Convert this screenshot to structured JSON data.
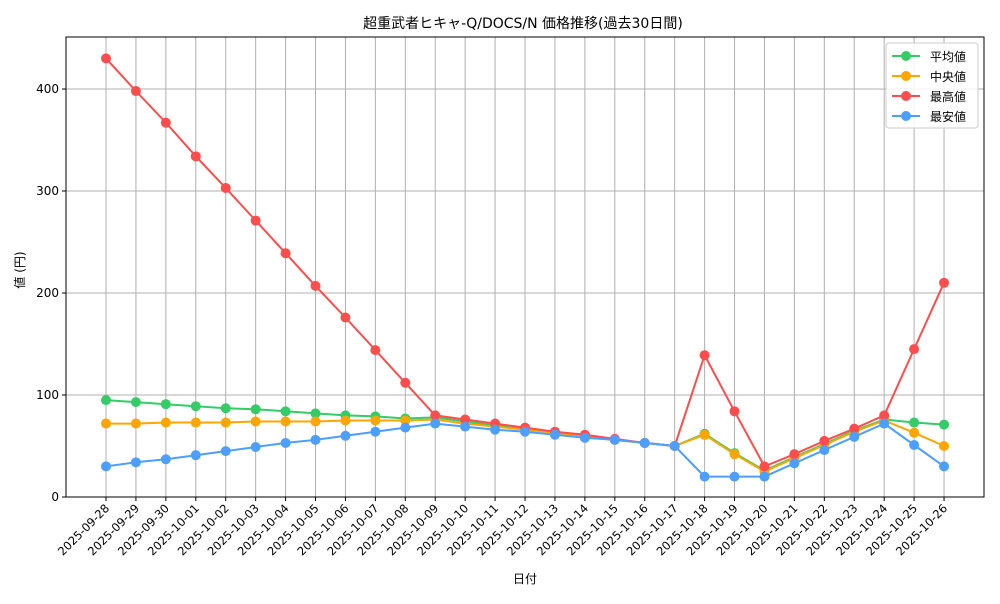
{
  "chart_data": {
    "type": "line",
    "title": "超重武者ヒキャ-Q/DOCS/N 価格推移(過去30日間)",
    "xlabel": "日付",
    "ylabel": "値 (円)",
    "ylim": [
      0,
      450
    ],
    "yticks": [
      0,
      100,
      200,
      300,
      400
    ],
    "grid": true,
    "legend_position": "upper right",
    "categories": [
      "2025-09-28",
      "2025-09-29",
      "2025-09-30",
      "2025-10-01",
      "2025-10-02",
      "2025-10-03",
      "2025-10-04",
      "2025-10-05",
      "2025-10-06",
      "2025-10-07",
      "2025-10-08",
      "2025-10-09",
      "2025-10-10",
      "2025-10-11",
      "2025-10-12",
      "2025-10-13",
      "2025-10-14",
      "2025-10-15",
      "2025-10-16",
      "2025-10-17",
      "2025-10-18",
      "2025-10-19",
      "2025-10-20",
      "2025-10-21",
      "2025-10-22",
      "2025-10-23",
      "2025-10-24",
      "2025-10-25",
      "2025-10-26"
    ],
    "series": [
      {
        "name": "平均値",
        "color": "#33cc66",
        "values": [
          95,
          93,
          91,
          89,
          87,
          86,
          84,
          82,
          80,
          79,
          77,
          78,
          74,
          70,
          67,
          63,
          60,
          56,
          53,
          50,
          62,
          43,
          26,
          39,
          52,
          65,
          76,
          73,
          71
        ]
      },
      {
        "name": "中央値",
        "color": "#ffa500",
        "values": [
          72,
          72,
          73,
          73,
          73,
          74,
          74,
          74,
          75,
          75,
          75,
          76,
          72,
          69,
          66,
          63,
          60,
          56,
          53,
          50,
          61,
          42,
          25,
          38,
          51,
          64,
          75,
          63,
          50
        ]
      },
      {
        "name": "最高値",
        "color": "#ff4d4d",
        "values": [
          430,
          398,
          367,
          334,
          303,
          271,
          239,
          207,
          176,
          144,
          112,
          80,
          76,
          72,
          68,
          64,
          61,
          57,
          53,
          50,
          139,
          84,
          30,
          42,
          55,
          67,
          80,
          145,
          210
        ]
      },
      {
        "name": "最安値",
        "color": "#4d9fff",
        "values": [
          30,
          34,
          37,
          41,
          45,
          49,
          53,
          56,
          60,
          64,
          68,
          72,
          69,
          66,
          64,
          61,
          58,
          56,
          53,
          50,
          20,
          20,
          20,
          33,
          46,
          59,
          72,
          51,
          30
        ]
      }
    ]
  }
}
